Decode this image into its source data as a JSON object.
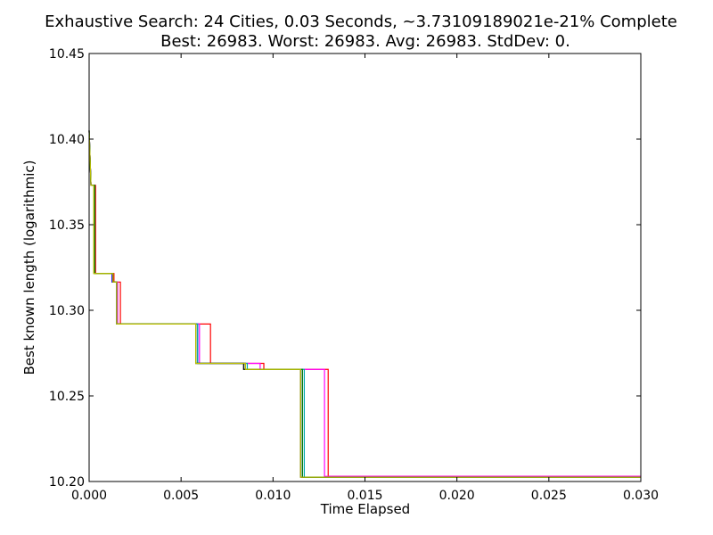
{
  "chart_data": {
    "type": "line",
    "title": "Exhaustive Search: 24 Cities, 0.03 Seconds, ~3.73109189021e-21% Complete",
    "subtitle": "Best: 26983. Worst: 26983. Avg: 26983. StdDev: 0.",
    "xlabel": "Time Elapsed",
    "ylabel": "Best known length (logarithmic)",
    "xlim": [
      0.0,
      0.03
    ],
    "ylim": [
      10.2,
      10.45
    ],
    "xticks": [
      "0.000",
      "0.005",
      "0.010",
      "0.015",
      "0.020",
      "0.025",
      "0.030"
    ],
    "yticks": [
      "10.20",
      "10.25",
      "10.30",
      "10.35",
      "10.40",
      "10.45"
    ],
    "xtick_values": [
      0.0,
      0.005,
      0.01,
      0.015,
      0.02,
      0.025,
      0.03
    ],
    "ytick_values": [
      10.2,
      10.25,
      10.3,
      10.35,
      10.4,
      10.45
    ],
    "grid": false,
    "series": [
      {
        "color": "#ff0000",
        "points": [
          [
            0.0,
            10.405
          ],
          [
            0.0001,
            10.373
          ],
          [
            0.00035,
            10.373
          ],
          [
            0.00035,
            10.3215
          ],
          [
            0.00135,
            10.3215
          ],
          [
            0.00135,
            10.3165
          ],
          [
            0.0017,
            10.3165
          ],
          [
            0.0017,
            10.292
          ],
          [
            0.0066,
            10.292
          ],
          [
            0.0066,
            10.269
          ],
          [
            0.0095,
            10.269
          ],
          [
            0.0095,
            10.2655
          ],
          [
            0.013,
            10.2655
          ],
          [
            0.013,
            10.203
          ],
          [
            0.03,
            10.203
          ]
        ]
      },
      {
        "color": "#ff00ff",
        "points": [
          [
            0.0,
            10.405
          ],
          [
            0.0001,
            10.373
          ],
          [
            0.0003,
            10.373
          ],
          [
            0.0003,
            10.3215
          ],
          [
            0.00125,
            10.3215
          ],
          [
            0.00125,
            10.3165
          ],
          [
            0.00155,
            10.3165
          ],
          [
            0.00155,
            10.292
          ],
          [
            0.006,
            10.292
          ],
          [
            0.006,
            10.269
          ],
          [
            0.0093,
            10.269
          ],
          [
            0.0093,
            10.2655
          ],
          [
            0.0128,
            10.2655
          ],
          [
            0.0128,
            10.203
          ],
          [
            0.03,
            10.203
          ]
        ]
      },
      {
        "color": "#0000ff",
        "points": [
          [
            0.0,
            10.405
          ],
          [
            0.0001,
            10.373
          ],
          [
            0.0003,
            10.373
          ],
          [
            0.0003,
            10.3215
          ],
          [
            0.00125,
            10.3215
          ],
          [
            0.00125,
            10.3165
          ],
          [
            0.0015,
            10.3165
          ],
          [
            0.0015,
            10.292
          ],
          [
            0.0059,
            10.292
          ],
          [
            0.0059,
            10.269
          ],
          [
            0.0085,
            10.269
          ],
          [
            0.0085,
            10.2655
          ],
          [
            0.0116,
            10.2655
          ],
          [
            0.0116,
            10.2025
          ],
          [
            0.03,
            10.2025
          ]
        ]
      },
      {
        "color": "#00aaaa",
        "points": [
          [
            0.0,
            10.405
          ],
          [
            0.0001,
            10.373
          ],
          [
            0.0003,
            10.373
          ],
          [
            0.0003,
            10.3215
          ],
          [
            0.0013,
            10.3215
          ],
          [
            0.0013,
            10.3165
          ],
          [
            0.0015,
            10.3165
          ],
          [
            0.0015,
            10.292
          ],
          [
            0.0059,
            10.292
          ],
          [
            0.0059,
            10.269
          ],
          [
            0.0086,
            10.269
          ],
          [
            0.0086,
            10.2655
          ],
          [
            0.0117,
            10.2655
          ],
          [
            0.0117,
            10.2025
          ],
          [
            0.03,
            10.2025
          ]
        ]
      },
      {
        "color": "#000000",
        "points": [
          [
            0.0,
            10.405
          ],
          [
            0.0001,
            10.373
          ],
          [
            0.0003,
            10.373
          ],
          [
            0.0003,
            10.3215
          ],
          [
            0.0013,
            10.3215
          ],
          [
            0.0013,
            10.3165
          ],
          [
            0.0015,
            10.3165
          ],
          [
            0.0015,
            10.292
          ],
          [
            0.0058,
            10.292
          ],
          [
            0.0058,
            10.269
          ],
          [
            0.0084,
            10.269
          ],
          [
            0.0084,
            10.2655
          ],
          [
            0.0115,
            10.2655
          ],
          [
            0.0115,
            10.2025
          ],
          [
            0.03,
            10.2025
          ]
        ]
      },
      {
        "color": "#008000",
        "points": [
          [
            0.0,
            10.405
          ],
          [
            0.0001,
            10.373
          ],
          [
            0.0003,
            10.373
          ],
          [
            0.0003,
            10.3215
          ],
          [
            0.0013,
            10.3215
          ],
          [
            0.0013,
            10.3165
          ],
          [
            0.0015,
            10.3165
          ],
          [
            0.0015,
            10.292
          ],
          [
            0.0058,
            10.292
          ],
          [
            0.0058,
            10.269
          ],
          [
            0.0085,
            10.269
          ],
          [
            0.0085,
            10.2655
          ],
          [
            0.0116,
            10.2655
          ],
          [
            0.0116,
            10.2025
          ],
          [
            0.03,
            10.2025
          ]
        ]
      },
      {
        "color": "#bfbf00",
        "points": [
          [
            0.0,
            10.405
          ],
          [
            0.0001,
            10.373
          ],
          [
            0.00025,
            10.373
          ],
          [
            0.00025,
            10.3215
          ],
          [
            0.0013,
            10.3215
          ],
          [
            0.0013,
            10.3165
          ],
          [
            0.0015,
            10.3165
          ],
          [
            0.0015,
            10.292
          ],
          [
            0.0058,
            10.292
          ],
          [
            0.0058,
            10.269
          ],
          [
            0.0085,
            10.269
          ],
          [
            0.0085,
            10.2655
          ],
          [
            0.0115,
            10.2655
          ],
          [
            0.0115,
            10.2025
          ],
          [
            0.03,
            10.2025
          ]
        ]
      }
    ]
  }
}
